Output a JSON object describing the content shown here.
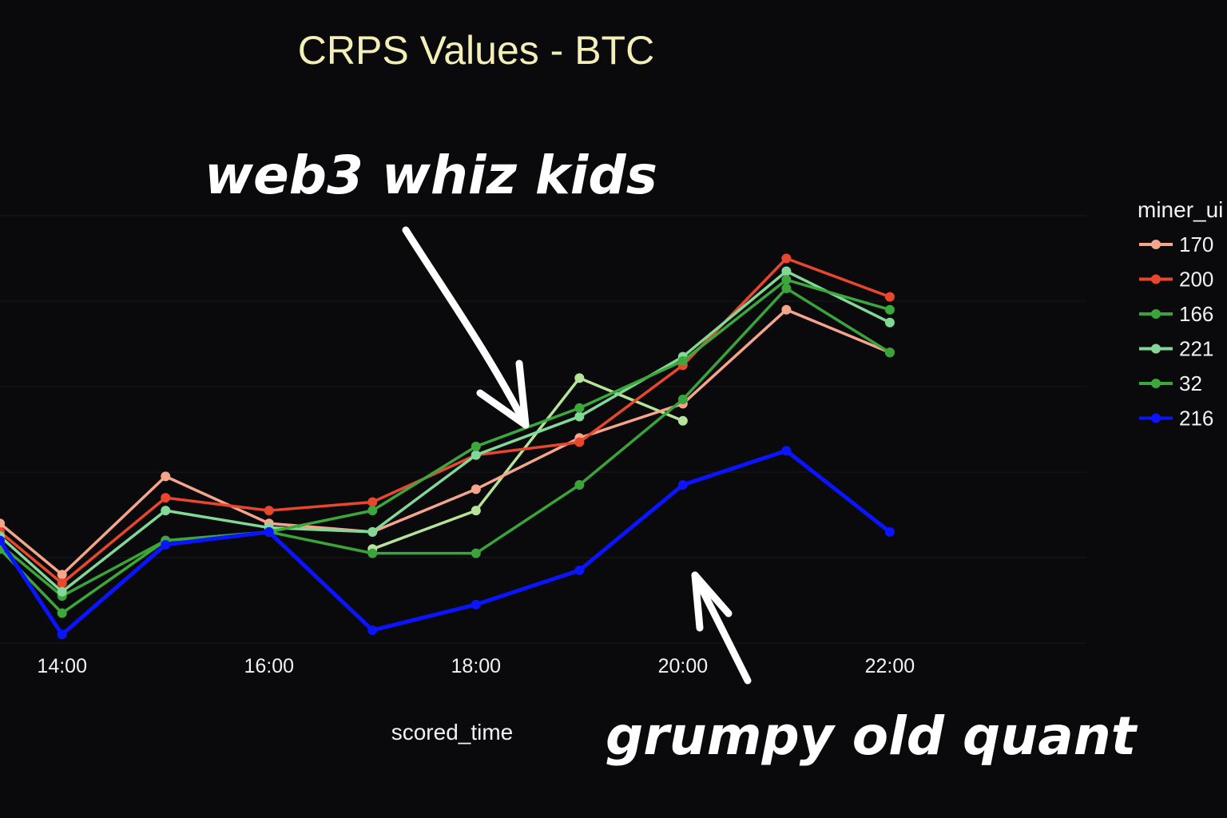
{
  "chart_data": {
    "type": "line",
    "title": "CRPS Values - BTC",
    "xlabel": "scored_time",
    "ylabel": "",
    "x_ticks": [
      "14:00",
      "16:00",
      "18:00",
      "20:00",
      "22:00"
    ],
    "x_tick_hours": [
      14,
      16,
      18,
      20,
      22
    ],
    "xlim": [
      13.4,
      23.9
    ],
    "ylim": [
      0,
      10
    ],
    "grid": true,
    "legend_title": "miner_ui",
    "legend_position": "right",
    "x": [
      13.4,
      14.0,
      15.0,
      16.0,
      17.0,
      18.0,
      19.0,
      20.0,
      21.0,
      22.0
    ],
    "series": [
      {
        "name": "170",
        "color": "#f4a58c",
        "values": [
          2.8,
          1.6,
          3.9,
          2.8,
          2.6,
          3.6,
          4.8,
          5.6,
          7.8,
          6.8
        ]
      },
      {
        "name": "200",
        "color": "#e8472e",
        "values": [
          2.6,
          1.4,
          3.4,
          3.1,
          3.3,
          4.4,
          4.7,
          6.5,
          9.0,
          8.1
        ]
      },
      {
        "name": "166",
        "color": "#3aa43a",
        "values": [
          2.3,
          1.1,
          2.4,
          2.6,
          2.1,
          2.1,
          3.7,
          5.7,
          8.3,
          6.8
        ]
      },
      {
        "name": "221",
        "color": "#82d896",
        "values": [
          2.5,
          1.2,
          3.1,
          2.7,
          2.6,
          4.4,
          5.3,
          6.7,
          8.7,
          7.5
        ]
      },
      {
        "name": "32",
        "color": "#3ca83c",
        "values": [
          2.2,
          0.7,
          2.4,
          2.6,
          3.1,
          4.6,
          5.5,
          6.6,
          8.5,
          7.8
        ]
      },
      {
        "name": "216",
        "color": "#0a14ff",
        "values": [
          2.4,
          0.2,
          2.3,
          2.6,
          0.3,
          0.9,
          1.7,
          3.7,
          4.5,
          2.6
        ]
      }
    ],
    "extra_series": [
      {
        "name": "",
        "color": "#b6e39a",
        "x": [
          17.0,
          18.0,
          19.0,
          20.0
        ],
        "values": [
          2.2,
          3.1,
          6.2,
          5.2
        ]
      }
    ]
  },
  "annotations": {
    "top_text": "web3 whiz kids",
    "bottom_text": "grumpy old quant"
  }
}
